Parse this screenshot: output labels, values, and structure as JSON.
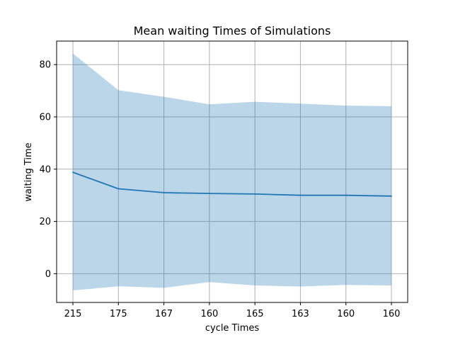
{
  "chart_data": {
    "type": "line",
    "title": "Mean waiting Times of Simulations",
    "xlabel": "cycle Times",
    "ylabel": "waiting Time",
    "categories": [
      "215",
      "175",
      "167",
      "160",
      "165",
      "163",
      "160",
      "160"
    ],
    "ylim": [
      -11,
      89
    ],
    "yticks": [
      0,
      20,
      40,
      60,
      80
    ],
    "grid": true,
    "series": [
      {
        "values": [
          38.8,
          32.5,
          31.0,
          30.7,
          30.5,
          30.0,
          30.0,
          29.7
        ],
        "band_upper": [
          84.3,
          70.2,
          67.7,
          64.8,
          65.8,
          65.1,
          64.3,
          64.1
        ],
        "band_lower": [
          -6.4,
          -4.8,
          -5.4,
          -3.2,
          -4.5,
          -4.9,
          -4.3,
          -4.5
        ],
        "color": "#1f77b4",
        "band_color": "#1f77b4",
        "band_opacity": 0.3
      }
    ]
  }
}
